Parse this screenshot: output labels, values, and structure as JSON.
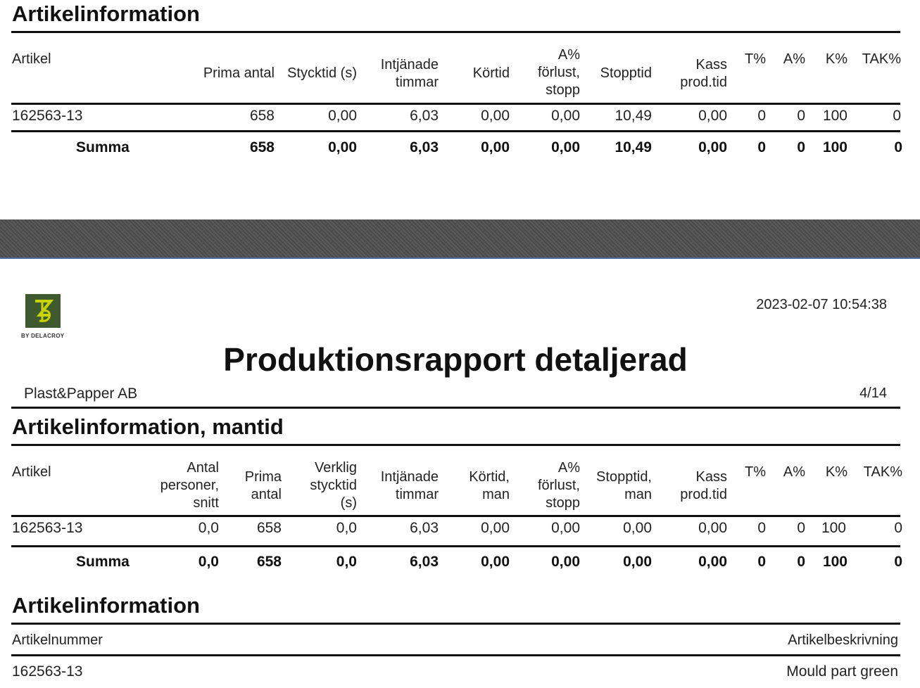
{
  "section1": {
    "title": "Artikelinformation",
    "headers": [
      "Artikel",
      "Prima antal",
      "Stycktid (s)",
      "Intjänade\ntimmar",
      "Körtid",
      "A%\nförlust,\nstopp",
      "Stopptid",
      "Kass\nprod.tid",
      "T%",
      "A%",
      "K%",
      "TAK%"
    ],
    "row": [
      "162563-13",
      "658",
      "0,00",
      "6,03",
      "0,00",
      "0,00",
      "10,49",
      "0,00",
      "0",
      "0",
      "100",
      "0"
    ],
    "sum": [
      "Summa",
      "658",
      "0,00",
      "6,03",
      "0,00",
      "0,00",
      "10,49",
      "0,00",
      "0",
      "0",
      "100",
      "0"
    ]
  },
  "page": {
    "logo_text": "BY DELACROY",
    "timestamp": "2023-02-07 10:54:38",
    "title": "Produktionsrapport detaljerad",
    "company": "Plast&Papper AB",
    "page_number": "4/14"
  },
  "section2": {
    "title": "Artikelinformation, mantid",
    "headers": [
      "Artikel",
      "Antal\npersoner,\nsnitt",
      "Prima\nantal",
      "Verklig\nstycktid\n(s)",
      "Intjänade\ntimmar",
      "Körtid,\nman",
      "A%\nförlust,\nstopp",
      "Stopptid,\nman",
      "Kass\nprod.tid",
      "T%",
      "A%",
      "K%",
      "TAK%"
    ],
    "row": [
      "162563-13",
      "0,0",
      "658",
      "0,0",
      "6,03",
      "0,00",
      "0,00",
      "0,00",
      "0,00",
      "0",
      "0",
      "100",
      "0"
    ],
    "sum": [
      "Summa",
      "0,0",
      "658",
      "0,0",
      "6,03",
      "0,00",
      "0,00",
      "0,00",
      "0,00",
      "0",
      "0",
      "100",
      "0"
    ]
  },
  "section3": {
    "title": "Artikelinformation",
    "headers": [
      "Artikelnummer",
      "Artikelbeskrivning"
    ],
    "row": [
      "162563-13",
      "Mould part green"
    ]
  },
  "colors": {
    "logo_bg": "#3f5a2e",
    "logo_mark": "#c8d400",
    "band": "#555555",
    "band_edge": "#4a6c9c"
  }
}
